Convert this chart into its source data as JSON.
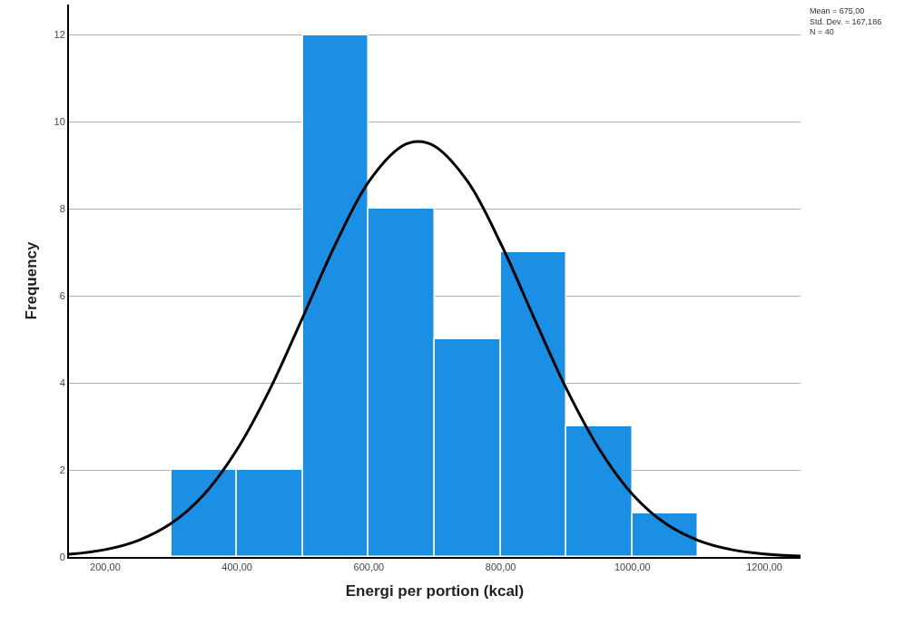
{
  "chart_data": {
    "type": "histogram",
    "xlabel": "Energi per portion (kcal)",
    "ylabel": "Frequency",
    "bins": [
      300,
      400,
      500,
      600,
      700,
      800,
      900,
      1000,
      1100
    ],
    "values": [
      2,
      2,
      12,
      8,
      5,
      7,
      3,
      1
    ],
    "color": "#1a8fe3",
    "series": [
      {
        "type": "line",
        "color": "#000000",
        "x": [
          145,
          200,
          250,
          300,
          350,
          400,
          450,
          500,
          550,
          600,
          650,
          675,
          700,
          750,
          800,
          850,
          900,
          950,
          1000,
          1050,
          1100,
          1150,
          1200,
          1255
        ],
        "values": [
          0.06,
          0.17,
          0.38,
          0.77,
          1.44,
          2.47,
          3.86,
          5.52,
          7.21,
          8.63,
          9.44,
          9.55,
          9.44,
          8.63,
          7.21,
          5.52,
          3.86,
          2.47,
          1.44,
          0.77,
          0.38,
          0.17,
          0.07,
          0.02
        ]
      }
    ],
    "xlim": [
      145,
      1255
    ],
    "ylim": [
      0,
      12.7
    ],
    "xticks": [
      {
        "value": 200,
        "label": "200,00"
      },
      {
        "value": 400,
        "label": "400,00"
      },
      {
        "value": 600,
        "label": "600,00"
      },
      {
        "value": 800,
        "label": "800,00"
      },
      {
        "value": 1000,
        "label": "1000,00"
      },
      {
        "value": 1200,
        "label": "1200,00"
      }
    ],
    "yticks": [
      0,
      2,
      4,
      6,
      8,
      10,
      12
    ],
    "grid": "y",
    "marker": "none",
    "line_style": "solid",
    "annotations": [
      "Mean = 675,00\nStd. Dev. = 167,186\nN = 40"
    ]
  }
}
